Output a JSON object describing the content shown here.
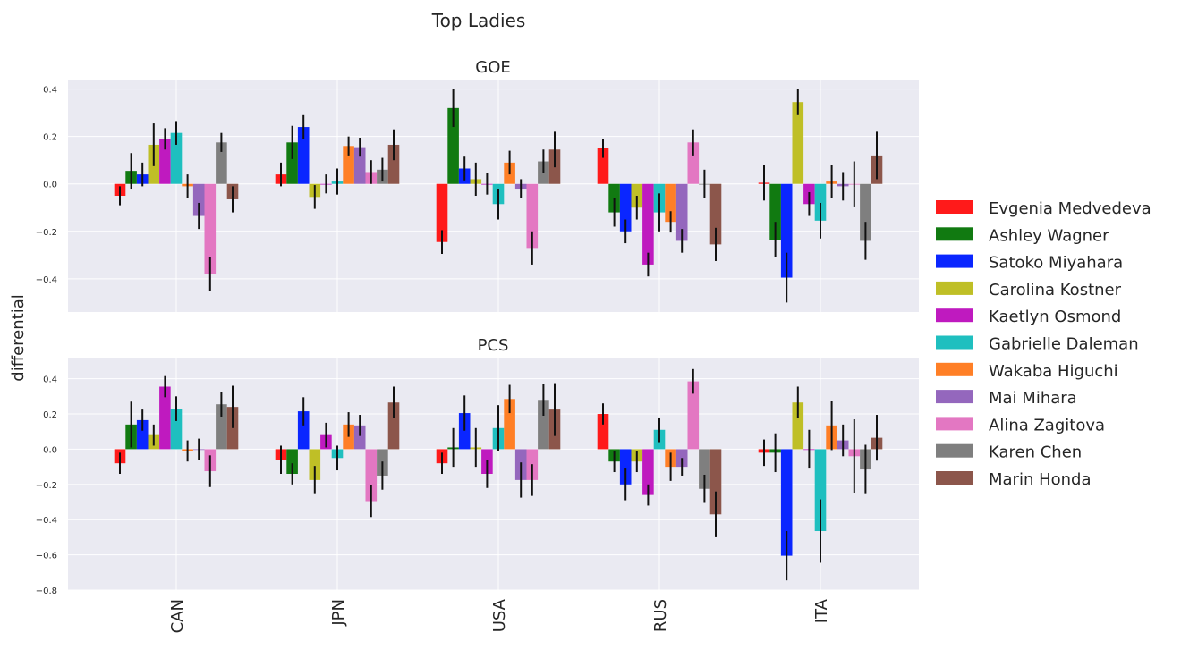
{
  "figure": {
    "title": "Top Ladies",
    "ylabel": "differential",
    "background_color": "#EAEAF2",
    "grid_color": "#FFFFFF",
    "errorbar_color": "#111111"
  },
  "legend": {
    "placement": "right",
    "entries": [
      {
        "name": "Evgenia Medvedeva",
        "color": "#FF1A1A"
      },
      {
        "name": "Ashley Wagner",
        "color": "#117A11"
      },
      {
        "name": "Satoko Miyahara",
        "color": "#0A26FF"
      },
      {
        "name": "Carolina Kostner",
        "color": "#BFBF26"
      },
      {
        "name": "Kaetlyn Osmond",
        "color": "#BF1ABF"
      },
      {
        "name": "Gabrielle Daleman",
        "color": "#1FBFBF"
      },
      {
        "name": "Wakaba Higuchi",
        "color": "#FF7F26"
      },
      {
        "name": "Mai Mihara",
        "color": "#9467BD"
      },
      {
        "name": "Alina Zagitova",
        "color": "#E377C2"
      },
      {
        "name": "Karen Chen",
        "color": "#7F7F7F"
      },
      {
        "name": "Marin Honda",
        "color": "#8C564B"
      }
    ]
  },
  "chart_data": [
    {
      "type": "bar",
      "title": "GOE",
      "categories": [
        "CAN",
        "JPN",
        "USA",
        "RUS",
        "ITA"
      ],
      "ylim": [
        -0.54,
        0.44
      ],
      "yticks": [
        -0.4,
        -0.2,
        0.0,
        0.2,
        0.4
      ],
      "ytick_labels": [
        "−0.4",
        "−0.2",
        "0.0",
        "0.2",
        "0.4"
      ],
      "grid": true,
      "show_category_labels": false,
      "series": [
        {
          "name": "Evgenia Medvedeva",
          "values": [
            -0.05,
            0.04,
            -0.245,
            0.15,
            0.005
          ],
          "errors": [
            0.04,
            0.05,
            0.05,
            0.04,
            0.075
          ]
        },
        {
          "name": "Ashley Wagner",
          "values": [
            0.055,
            0.175,
            0.32,
            -0.12,
            -0.235
          ],
          "errors": [
            0.075,
            0.07,
            0.08,
            0.06,
            0.075
          ]
        },
        {
          "name": "Satoko Miyahara",
          "values": [
            0.04,
            0.24,
            0.065,
            -0.2,
            -0.395
          ],
          "errors": [
            0.05,
            0.05,
            0.05,
            0.05,
            0.105
          ]
        },
        {
          "name": "Carolina Kostner",
          "values": [
            0.165,
            -0.055,
            0.02,
            -0.1,
            0.345
          ],
          "errors": [
            0.09,
            0.05,
            0.07,
            0.05,
            0.055
          ]
        },
        {
          "name": "Kaetlyn Osmond",
          "values": [
            0.19,
            0.0,
            0.0,
            -0.34,
            -0.085
          ],
          "errors": [
            0.045,
            0.04,
            0.045,
            0.05,
            0.05
          ]
        },
        {
          "name": "Gabrielle Daleman",
          "values": [
            0.215,
            0.01,
            -0.085,
            -0.12,
            -0.155
          ],
          "errors": [
            0.05,
            0.055,
            0.065,
            0.08,
            0.075
          ]
        },
        {
          "name": "Wakaba Higuchi",
          "values": [
            -0.01,
            0.16,
            0.09,
            -0.16,
            0.01
          ],
          "errors": [
            0.05,
            0.04,
            0.05,
            0.045,
            0.07
          ]
        },
        {
          "name": "Mai Mihara",
          "values": [
            -0.135,
            0.155,
            -0.02,
            -0.24,
            -0.01
          ],
          "errors": [
            0.055,
            0.04,
            0.04,
            0.05,
            0.06
          ]
        },
        {
          "name": "Alina Zagitova",
          "values": [
            -0.38,
            0.05,
            -0.27,
            0.175,
            0.0
          ],
          "errors": [
            0.07,
            0.05,
            0.07,
            0.055,
            0.095
          ]
        },
        {
          "name": "Karen Chen",
          "values": [
            0.175,
            0.06,
            0.095,
            0.0,
            -0.24
          ],
          "errors": [
            0.04,
            0.05,
            0.05,
            0.06,
            0.08
          ]
        },
        {
          "name": "Marin Honda",
          "values": [
            -0.065,
            0.165,
            0.145,
            -0.255,
            0.12
          ],
          "errors": [
            0.055,
            0.065,
            0.075,
            0.07,
            0.1
          ]
        }
      ]
    },
    {
      "type": "bar",
      "title": "PCS",
      "categories": [
        "CAN",
        "JPN",
        "USA",
        "RUS",
        "ITA"
      ],
      "ylim": [
        -0.8,
        0.52
      ],
      "yticks": [
        -0.8,
        -0.6,
        -0.4,
        -0.2,
        0.0,
        0.2,
        0.4
      ],
      "ytick_labels": [
        "−0.8",
        "−0.6",
        "−0.4",
        "−0.2",
        "0.0",
        "0.2",
        "0.4"
      ],
      "grid": true,
      "show_category_labels": true,
      "series": [
        {
          "name": "Evgenia Medvedeva",
          "values": [
            -0.08,
            -0.06,
            -0.08,
            0.2,
            -0.02
          ],
          "errors": [
            0.06,
            0.08,
            0.06,
            0.06,
            0.075
          ]
        },
        {
          "name": "Ashley Wagner",
          "values": [
            0.14,
            -0.14,
            0.01,
            -0.07,
            -0.02
          ],
          "errors": [
            0.13,
            0.06,
            0.11,
            0.06,
            0.11
          ]
        },
        {
          "name": "Satoko Miyahara",
          "values": [
            0.165,
            0.215,
            0.205,
            -0.2,
            -0.605
          ],
          "errors": [
            0.06,
            0.08,
            0.1,
            0.09,
            0.14
          ]
        },
        {
          "name": "Carolina Kostner",
          "values": [
            0.08,
            -0.175,
            0.01,
            -0.07,
            0.265
          ],
          "errors": [
            0.06,
            0.08,
            0.11,
            0.06,
            0.09
          ]
        },
        {
          "name": "Kaetlyn Osmond",
          "values": [
            0.355,
            0.08,
            -0.14,
            -0.26,
            0.0
          ],
          "errors": [
            0.06,
            0.07,
            0.08,
            0.06,
            0.11
          ]
        },
        {
          "name": "Gabrielle Daleman",
          "values": [
            0.23,
            -0.05,
            0.12,
            0.11,
            -0.465
          ],
          "errors": [
            0.07,
            0.07,
            0.13,
            0.07,
            0.18
          ]
        },
        {
          "name": "Wakaba Higuchi",
          "values": [
            -0.01,
            0.14,
            0.285,
            -0.1,
            0.135
          ],
          "errors": [
            0.06,
            0.07,
            0.08,
            0.08,
            0.14
          ]
        },
        {
          "name": "Mai Mihara",
          "values": [
            0.0,
            0.135,
            -0.175,
            -0.1,
            0.05
          ],
          "errors": [
            0.06,
            0.06,
            0.1,
            0.05,
            0.09
          ]
        },
        {
          "name": "Alina Zagitova",
          "values": [
            -0.125,
            -0.295,
            -0.175,
            0.385,
            -0.04
          ],
          "errors": [
            0.09,
            0.09,
            0.09,
            0.07,
            0.21
          ]
        },
        {
          "name": "Karen Chen",
          "values": [
            0.255,
            -0.15,
            0.28,
            -0.225,
            -0.115
          ],
          "errors": [
            0.07,
            0.08,
            0.09,
            0.08,
            0.14
          ]
        },
        {
          "name": "Marin Honda",
          "values": [
            0.24,
            0.265,
            0.225,
            -0.37,
            0.065
          ],
          "errors": [
            0.12,
            0.09,
            0.15,
            0.13,
            0.13
          ]
        }
      ]
    }
  ]
}
